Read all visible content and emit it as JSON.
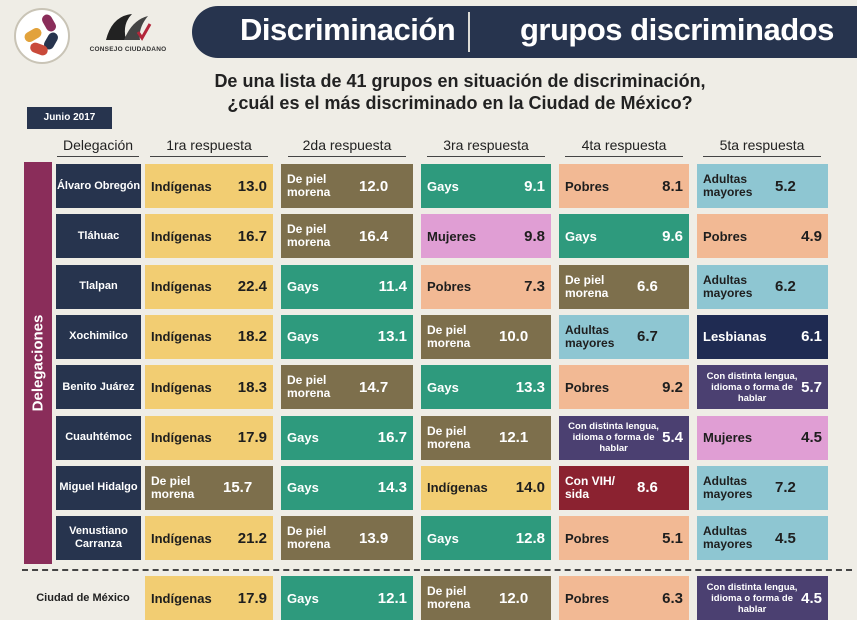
{
  "header": {
    "title_left": "Discriminación",
    "title_right": "grupos discriminados",
    "logo_caption": "CONSEJO CIUDADANO"
  },
  "question": {
    "line1": "De una lista de 41 grupos en situación de discriminación,",
    "line2": "¿cuál es el más discriminado en la Ciudad de México?"
  },
  "date": "Junio 2017",
  "sidebar_label": "Delegaciones",
  "colors": {
    "Indígenas": "#f2cd72",
    "De piel morena": "#7d6f4c",
    "Gays": "#2e9a7d",
    "Mujeres": "#e09ed4",
    "Pobres": "#f2b994",
    "Adultas mayores": "#8ec6d2",
    "Lesbianas": "#1f2b52",
    "Con distinta lengua, idioma o forma de hablar": "#4b4071",
    "Con VIH/ sida": "#8b2230"
  },
  "chart_data": {
    "type": "table",
    "columns": [
      "Delegación",
      "1ra respuesta",
      "2da respuesta",
      "3ra respuesta",
      "4ta respuesta",
      "5ta respuesta"
    ],
    "rows": [
      {
        "delegacion": "Álvaro Obregón",
        "answers": [
          {
            "group": "Indígenas",
            "value": "13.0"
          },
          {
            "group": "De piel morena",
            "value": "12.0"
          },
          {
            "group": "Gays",
            "value": "9.1"
          },
          {
            "group": "Pobres",
            "value": "8.1"
          },
          {
            "group": "Adultas mayores",
            "value": "5.2"
          }
        ]
      },
      {
        "delegacion": "Tláhuac",
        "answers": [
          {
            "group": "Indígenas",
            "value": "16.7"
          },
          {
            "group": "De piel morena",
            "value": "16.4"
          },
          {
            "group": "Mujeres",
            "value": "9.8"
          },
          {
            "group": "Gays",
            "value": "9.6"
          },
          {
            "group": "Pobres",
            "value": "4.9"
          }
        ]
      },
      {
        "delegacion": "Tlalpan",
        "answers": [
          {
            "group": "Indígenas",
            "value": "22.4"
          },
          {
            "group": "Gays",
            "value": "11.4"
          },
          {
            "group": "Pobres",
            "value": "7.3"
          },
          {
            "group": "De piel morena",
            "value": "6.6"
          },
          {
            "group": "Adultas mayores",
            "value": "6.2"
          }
        ]
      },
      {
        "delegacion": "Xochimilco",
        "answers": [
          {
            "group": "Indígenas",
            "value": "18.2"
          },
          {
            "group": "Gays",
            "value": "13.1"
          },
          {
            "group": "De piel morena",
            "value": "10.0"
          },
          {
            "group": "Adultas mayores",
            "value": "6.7"
          },
          {
            "group": "Lesbianas",
            "value": "6.1"
          }
        ]
      },
      {
        "delegacion": "Benito Juárez",
        "answers": [
          {
            "group": "Indígenas",
            "value": "18.3"
          },
          {
            "group": "De piel morena",
            "value": "14.7"
          },
          {
            "group": "Gays",
            "value": "13.3"
          },
          {
            "group": "Pobres",
            "value": "9.2"
          },
          {
            "group": "Con distinta lengua, idioma o forma de hablar",
            "value": "5.7"
          }
        ]
      },
      {
        "delegacion": "Cuauhtémoc",
        "answers": [
          {
            "group": "Indígenas",
            "value": "17.9"
          },
          {
            "group": "Gays",
            "value": "16.7"
          },
          {
            "group": "De piel morena",
            "value": "12.1"
          },
          {
            "group": "Con distinta lengua, idioma o forma de hablar",
            "value": "5.4"
          },
          {
            "group": "Mujeres",
            "value": "4.5"
          }
        ]
      },
      {
        "delegacion": "Miguel Hidalgo",
        "answers": [
          {
            "group": "De piel morena",
            "value": "15.7"
          },
          {
            "group": "Gays",
            "value": "14.3"
          },
          {
            "group": "Indígenas",
            "value": "14.0"
          },
          {
            "group": "Con VIH/ sida",
            "value": "8.6"
          },
          {
            "group": "Adultas mayores",
            "value": "7.2"
          }
        ]
      },
      {
        "delegacion": "Venustiano Carranza",
        "answers": [
          {
            "group": "Indígenas",
            "value": "21.2"
          },
          {
            "group": "De piel morena",
            "value": "13.9"
          },
          {
            "group": "Gays",
            "value": "12.8"
          },
          {
            "group": "Pobres",
            "value": "5.1"
          },
          {
            "group": "Adultas mayores",
            "value": "4.5"
          }
        ]
      }
    ],
    "total": {
      "delegacion": "Ciudad de México",
      "answers": [
        {
          "group": "Indígenas",
          "value": "17.9"
        },
        {
          "group": "Gays",
          "value": "12.1"
        },
        {
          "group": "De piel morena",
          "value": "12.0"
        },
        {
          "group": "Pobres",
          "value": "6.3"
        },
        {
          "group": "Con distinta lengua, idioma o forma de hablar",
          "value": "4.5"
        }
      ]
    }
  }
}
